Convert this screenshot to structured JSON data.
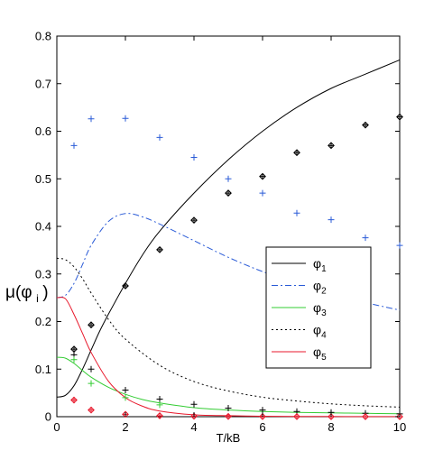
{
  "chart_data": {
    "type": "line",
    "xlabel": "T/kB",
    "ylabel_main": "μ(φ",
    "ylabel_sub": "i",
    "ylabel_close": ")",
    "xlim": [
      0,
      10
    ],
    "ylim": [
      0,
      0.8
    ],
    "xticks": [
      "0",
      "2",
      "4",
      "6",
      "8",
      "10"
    ],
    "yticks": [
      "0",
      "0.1",
      "0.2",
      "0.3",
      "0.4",
      "0.5",
      "0.6",
      "0.7",
      "0.8"
    ],
    "grid": false,
    "legend_position": "center-right",
    "series": [
      {
        "name": "φ",
        "sub": "1",
        "style": "solid",
        "color": "#000000",
        "x": [
          0,
          0.25,
          0.5,
          0.75,
          1,
          1.25,
          1.5,
          2,
          2.5,
          3,
          4,
          5,
          6,
          7,
          8,
          9,
          10
        ],
        "y": [
          0.041,
          0.045,
          0.065,
          0.1,
          0.14,
          0.18,
          0.215,
          0.28,
          0.34,
          0.39,
          0.47,
          0.54,
          0.6,
          0.65,
          0.69,
          0.72,
          0.75
        ]
      },
      {
        "name": "φ",
        "sub": "2",
        "style": "dashdot",
        "color": "#2a5bd7",
        "x": [
          0,
          0.25,
          0.5,
          0.75,
          1,
          1.5,
          2,
          2.5,
          3,
          4,
          5,
          6,
          7,
          8,
          9,
          10
        ],
        "y": [
          0.25,
          0.255,
          0.28,
          0.32,
          0.36,
          0.41,
          0.427,
          0.42,
          0.405,
          0.37,
          0.335,
          0.305,
          0.28,
          0.26,
          0.24,
          0.224
        ]
      },
      {
        "name": "φ",
        "sub": "3",
        "style": "solid",
        "color": "#33cc33",
        "x": [
          0,
          0.25,
          0.5,
          0.75,
          1,
          1.5,
          2,
          2.5,
          3,
          4,
          5,
          6,
          7,
          8,
          9,
          10
        ],
        "y": [
          0.125,
          0.123,
          0.112,
          0.097,
          0.083,
          0.062,
          0.047,
          0.036,
          0.029,
          0.019,
          0.014,
          0.011,
          0.009,
          0.008,
          0.007,
          0.006
        ]
      },
      {
        "name": "φ",
        "sub": "4",
        "style": "dotted",
        "color": "#000000",
        "x": [
          0,
          0.25,
          0.5,
          0.75,
          1,
          1.5,
          2,
          3,
          4,
          5,
          6,
          7,
          8,
          9,
          10
        ],
        "y": [
          0.333,
          0.33,
          0.315,
          0.29,
          0.26,
          0.205,
          0.163,
          0.108,
          0.074,
          0.054,
          0.041,
          0.033,
          0.027,
          0.023,
          0.02
        ]
      },
      {
        "name": "φ",
        "sub": "5",
        "style": "solid",
        "color": "#e8192c",
        "x": [
          0,
          0.25,
          0.5,
          0.75,
          1,
          1.5,
          2,
          2.5,
          3,
          4,
          5,
          6,
          7,
          8,
          9,
          10
        ],
        "y": [
          0.25,
          0.248,
          0.215,
          0.175,
          0.135,
          0.075,
          0.04,
          0.022,
          0.012,
          0.004,
          0.002,
          0.001,
          0.0005,
          0.0003,
          0.0002,
          0.0001
        ]
      }
    ],
    "markers": [
      {
        "name": "phi1-diamond-markers",
        "shape": "diamond-plus",
        "color": "#000000",
        "x": [
          0.5,
          1,
          2,
          3,
          4,
          5,
          6,
          7,
          8,
          9,
          10
        ],
        "y": [
          0.142,
          0.193,
          0.275,
          0.351,
          0.413,
          0.47,
          0.505,
          0.555,
          0.57,
          0.613,
          0.63
        ]
      },
      {
        "name": "phi2-plus-markers",
        "shape": "plus",
        "color": "#2a5bd7",
        "x": [
          0.5,
          1,
          2,
          3,
          4,
          5,
          6,
          7,
          8,
          9,
          10
        ],
        "y": [
          0.57,
          0.626,
          0.627,
          0.587,
          0.545,
          0.5,
          0.47,
          0.428,
          0.414,
          0.376,
          0.36
        ]
      },
      {
        "name": "phi1-plus-markers",
        "shape": "plus",
        "color": "#000000",
        "x": [
          0.5,
          1,
          2,
          3,
          4,
          5,
          6,
          7,
          8,
          9,
          10
        ],
        "y": [
          0.13,
          0.1,
          0.056,
          0.037,
          0.026,
          0.018,
          0.014,
          0.011,
          0.009,
          0.007,
          0.006
        ]
      },
      {
        "name": "phi3-plus-markers",
        "shape": "plus",
        "color": "#33cc33",
        "x": [
          0.5,
          1,
          2,
          3
        ],
        "y": [
          0.12,
          0.07,
          0.04,
          0.025
        ]
      },
      {
        "name": "phi5-diamond-markers",
        "shape": "diamond-plus",
        "color": "#e8192c",
        "x": [
          0.5,
          1,
          2,
          3,
          4,
          5,
          6,
          7,
          8,
          9,
          10
        ],
        "y": [
          0.035,
          0.014,
          0.005,
          0.002,
          0.001,
          0.0005,
          0.0003,
          0.0002,
          0.0001,
          0.0001,
          0.0001
        ]
      }
    ]
  }
}
